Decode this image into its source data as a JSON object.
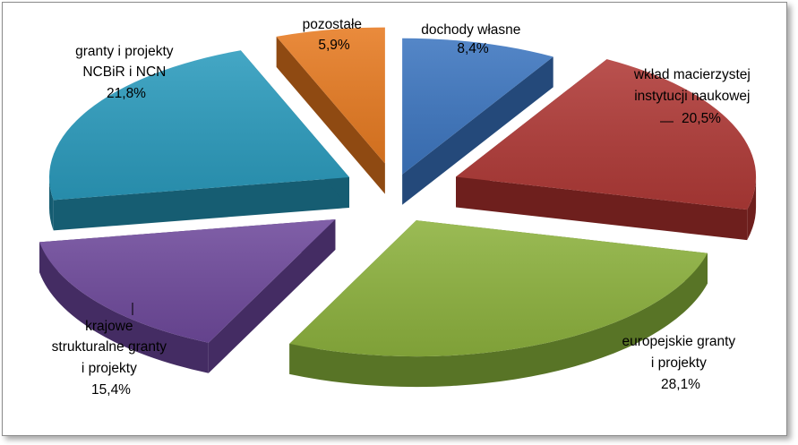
{
  "chart_data": {
    "type": "pie",
    "style": "3d-exploded",
    "title": "",
    "slices": [
      {
        "label_lines": [
          "dochody własne"
        ],
        "value_text": "8,4%",
        "value": 8.4,
        "color": "#3d76c0",
        "side": "#24497a"
      },
      {
        "label_lines": [
          "wkład macierzystej",
          "instytucji naukowej"
        ],
        "value_text": "20,5%",
        "value": 20.5,
        "color": "#b03a37",
        "side": "#6e1f1d"
      },
      {
        "label_lines": [
          "europejskie granty",
          "i projekty"
        ],
        "value_text": "28,1%",
        "value": 28.1,
        "color": "#8db23e",
        "side": "#587426"
      },
      {
        "label_lines": [
          "krajowe",
          "strukturalne granty",
          "i projekty"
        ],
        "value_text": "15,4%",
        "value": 15.4,
        "color": "#6f4a9c",
        "side": "#442c63"
      },
      {
        "label_lines": [
          "granty i projekty",
          "NCBiR i NCN"
        ],
        "value_text": "21,8%",
        "value": 21.8,
        "color": "#2b9bbd",
        "side": "#165d72"
      },
      {
        "label_lines": [
          "pozostałe"
        ],
        "value_text": "5,9%",
        "value": 5.9,
        "color": "#e77b22",
        "side": "#8f4a12"
      }
    ]
  }
}
